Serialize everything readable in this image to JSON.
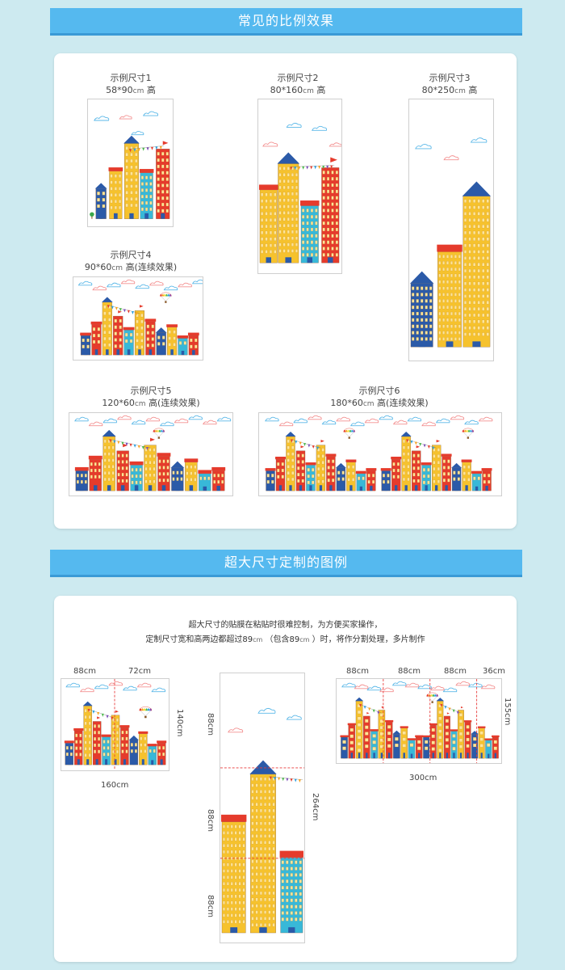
{
  "section1": {
    "title": "常见的比例效果",
    "examples": [
      {
        "label": "示例尺寸1",
        "size": "58*90",
        "unit": "cm",
        "suffix": "高"
      },
      {
        "label": "示例尺寸2",
        "size": "80*160",
        "unit": "cm",
        "suffix": "高"
      },
      {
        "label": "示例尺寸3",
        "size": "80*250",
        "unit": "cm",
        "suffix": "高"
      },
      {
        "label": "示例尺寸4",
        "size": "90*60",
        "unit": "cm",
        "suffix": "高(连续效果)"
      },
      {
        "label": "示例尺寸5",
        "size": "120*60",
        "unit": "cm",
        "suffix": "高(连续效果)"
      },
      {
        "label": "示例尺寸6",
        "size": "180*60",
        "unit": "cm",
        "suffix": "高(连续效果)"
      }
    ]
  },
  "section2": {
    "title": "超大尺寸定制的图例",
    "intro_line1": "超大尺寸的贴膜在粘贴时很难控制，为方便买家操作，",
    "intro_line2_a": "定制尺寸宽和高两边都超过89",
    "intro_line2_b": "（包含89",
    "intro_line2_c": "）时，将作分割处理，多片制作",
    "unit": "cm",
    "fig1": {
      "seg1": "88cm",
      "seg2": "72cm",
      "height": "140cm",
      "width": "160cm"
    },
    "fig2": {
      "seg_top": "88cm",
      "seg_mid": "88cm",
      "seg_bot": "88cm",
      "height": "264cm"
    },
    "fig3": {
      "seg1": "88cm",
      "seg2": "88cm",
      "seg3": "88cm",
      "seg4": "36cm",
      "height": "155cm",
      "width": "300cm"
    }
  },
  "colors": {
    "banner": "#55b9ef",
    "page_bg": "#cdeaf0",
    "cut_line": "#e83a3a"
  }
}
